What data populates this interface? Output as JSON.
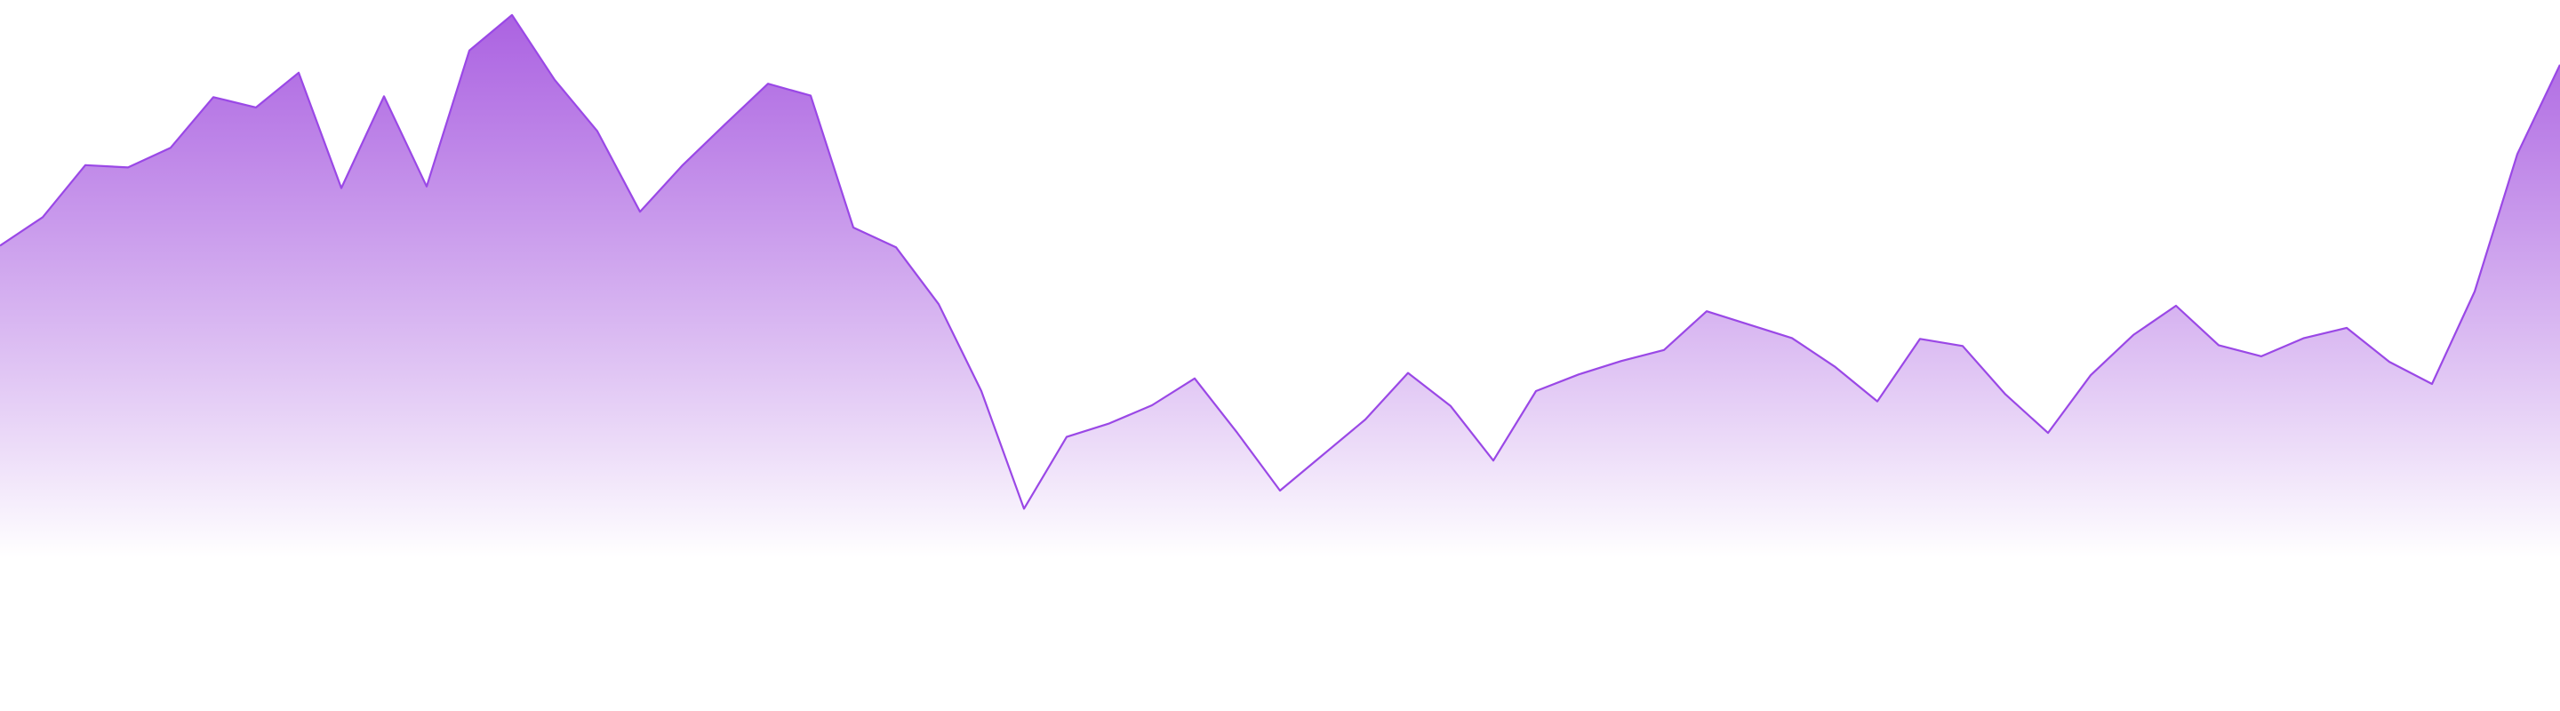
{
  "chart_data": {
    "type": "area",
    "title": "",
    "xlabel": "",
    "ylabel": "",
    "grid": false,
    "legend": "none",
    "x": [
      0,
      1,
      2,
      3,
      4,
      5,
      6,
      7,
      8,
      9,
      10,
      11,
      12,
      13,
      14,
      15,
      16,
      17,
      18,
      19,
      20,
      21,
      22,
      23,
      24,
      25,
      26,
      27,
      28,
      29,
      30,
      31,
      32,
      33,
      34,
      35,
      36,
      37,
      38,
      39,
      40,
      41,
      42,
      43,
      44,
      45,
      46,
      47,
      48,
      49,
      50,
      51,
      52,
      53,
      54,
      55,
      56,
      57,
      58,
      59,
      60
    ],
    "series": [
      {
        "values": [
          58.9,
          62.5,
          69.1,
          68.8,
          71.3,
          77.7,
          76.4,
          80.8,
          66.2,
          77.8,
          66.4,
          83.6,
          88.1,
          79.9,
          73.4,
          63.2,
          69.1,
          74.3,
          79.4,
          77.9,
          61.2,
          58.7,
          51.5,
          40.5,
          25.6,
          34.7,
          36.4,
          38.7,
          42.1,
          35.2,
          27.9,
          32.4,
          36.9,
          42.8,
          38.6,
          31.7,
          40.5,
          42.6,
          44.3,
          45.7,
          50.6,
          48.9,
          47.2,
          43.6,
          39.2,
          47.1,
          46.2,
          40.1,
          35.2,
          42.5,
          47.6,
          51.3,
          46.3,
          44.9,
          47.2,
          48.5,
          44.2,
          41.4,
          53.1,
          70.5,
          81.8
        ]
      }
    ],
    "ylim": [
      0,
      90
    ],
    "colors": {
      "line": "#9a48e6",
      "fill_top": "#a251de",
      "fill_bottom": "#ffffff"
    }
  }
}
